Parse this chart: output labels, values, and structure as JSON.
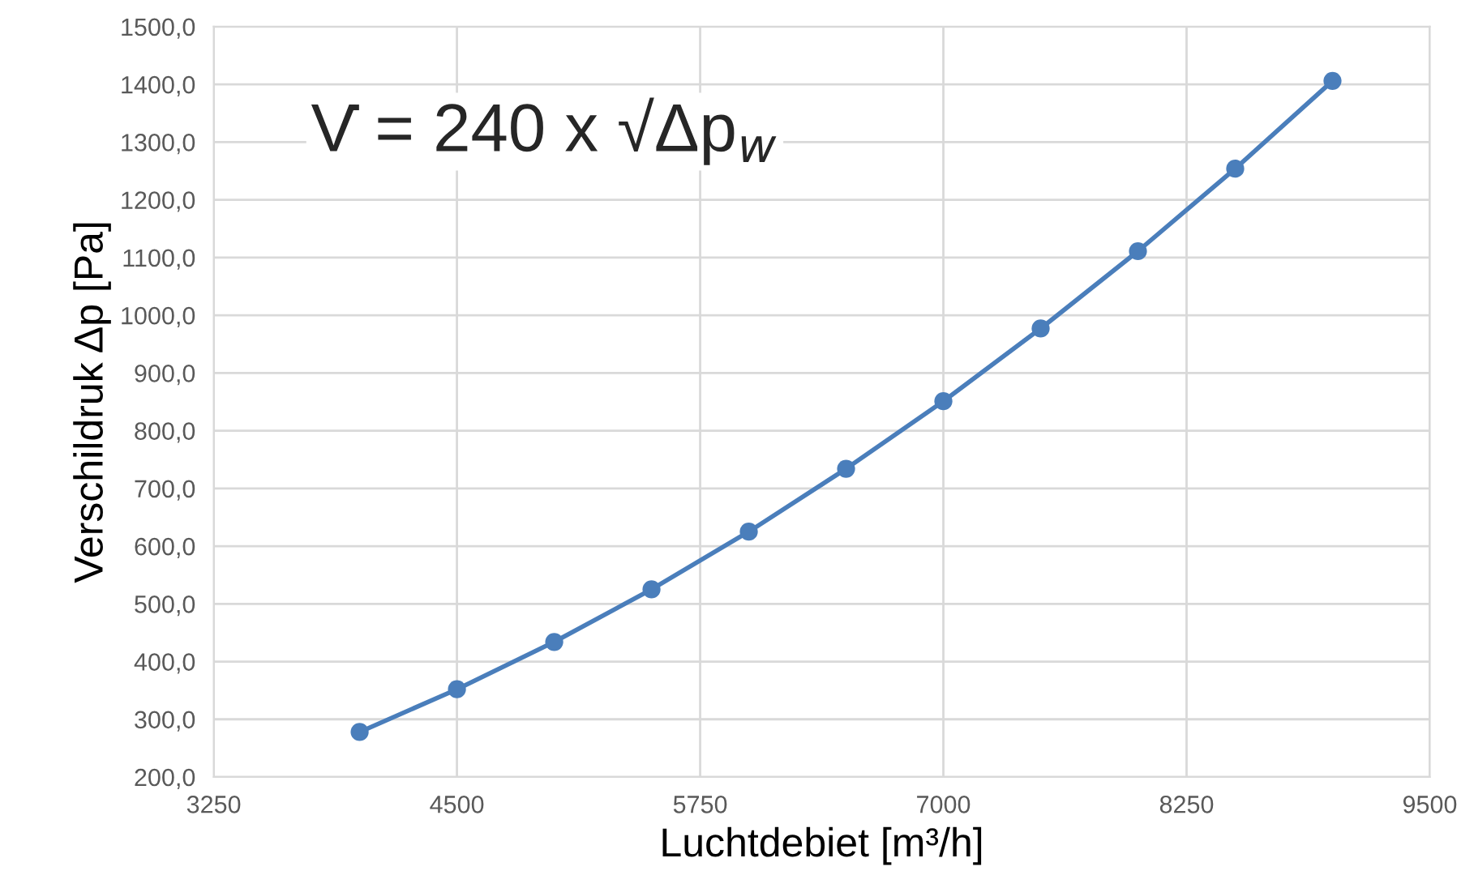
{
  "chart_data": {
    "type": "line",
    "xlabel": "Luchtdebiet [m³/h]",
    "ylabel": "Verschildruk Δp [Pa]",
    "annotations": [
      "V̇ = 240 x √Δp$_{w}$"
    ],
    "x": [
      4000,
      4500,
      5000,
      5500,
      6000,
      6500,
      7000,
      7500,
      8000,
      8500,
      9000
    ],
    "series": [
      {
        "color": "#4a7ebb",
        "values": [
          278,
          352,
          434,
          525,
          625,
          734,
          851,
          977,
          1111,
          1254,
          1406
        ]
      }
    ],
    "xlim": [
      3250,
      9500
    ],
    "xticks": [
      3250,
      4500,
      5750,
      7000,
      8250,
      9500
    ],
    "ylim": [
      200,
      1500
    ],
    "yticks": [
      {
        "value": 200,
        "label": "200,0"
      },
      {
        "value": 300,
        "label": "300,0"
      },
      {
        "value": 400,
        "label": "400,0"
      },
      {
        "value": 500,
        "label": "500,0"
      },
      {
        "value": 600,
        "label": "600,0"
      },
      {
        "value": 700,
        "label": "700,0"
      },
      {
        "value": 800,
        "label": "800,0"
      },
      {
        "value": 900,
        "label": "900,0"
      },
      {
        "value": 1000,
        "label": "1000,0"
      },
      {
        "value": 1100,
        "label": "1100,0"
      },
      {
        "value": 1200,
        "label": "1200,0"
      },
      {
        "value": 1300,
        "label": "1300,0"
      },
      {
        "value": 1400,
        "label": "1400,0"
      },
      {
        "value": 1500,
        "label": "1500,0"
      }
    ],
    "grid": true,
    "marker": "circle",
    "line_style": "solid",
    "legend": false
  }
}
